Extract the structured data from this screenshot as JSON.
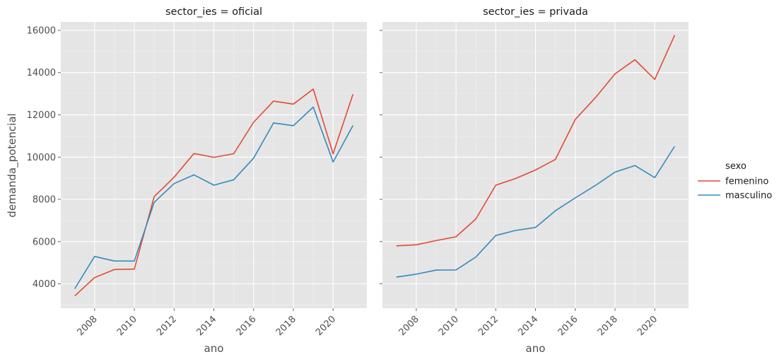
{
  "chart_data": [
    {
      "type": "line",
      "title": "sector_ies = oficial",
      "xlabel": "ano",
      "ylabel": "demanda_potencial",
      "x": [
        2007,
        2008,
        2009,
        2010,
        2011,
        2012,
        2013,
        2014,
        2015,
        2016,
        2017,
        2018,
        2019,
        2020,
        2021
      ],
      "xlim": [
        2006.3,
        2021.7
      ],
      "ylim": [
        2850,
        16400
      ],
      "xticks": [
        "2008",
        "2010",
        "2012",
        "2014",
        "2016",
        "2018",
        "2020"
      ],
      "yticks": [
        "4000",
        "6000",
        "8000",
        "10000",
        "12000",
        "14000",
        "16000"
      ],
      "grid": true,
      "series": [
        {
          "name": "femenino",
          "color": "#e24a33",
          "values": [
            3430,
            4300,
            4680,
            4700,
            8130,
            9050,
            10170,
            9990,
            10160,
            11650,
            12650,
            12510,
            13220,
            10160,
            12980
          ]
        },
        {
          "name": "masculino",
          "color": "#348abd",
          "values": [
            3770,
            5300,
            5080,
            5080,
            7860,
            8750,
            9160,
            8670,
            8930,
            9950,
            11620,
            11490,
            12370,
            9770,
            11500
          ]
        }
      ]
    },
    {
      "type": "line",
      "title": "sector_ies = privada",
      "xlabel": "ano",
      "ylabel": "",
      "x": [
        2007,
        2008,
        2009,
        2010,
        2011,
        2012,
        2013,
        2014,
        2015,
        2016,
        2017,
        2018,
        2019,
        2020,
        2021
      ],
      "xlim": [
        2006.3,
        2021.7
      ],
      "ylim": [
        2850,
        16400
      ],
      "xticks": [
        "2008",
        "2010",
        "2012",
        "2014",
        "2016",
        "2018",
        "2020"
      ],
      "grid": true,
      "series": [
        {
          "name": "femenino",
          "color": "#e24a33",
          "values": [
            5800,
            5850,
            6050,
            6230,
            7070,
            8670,
            8990,
            9390,
            9890,
            11780,
            12800,
            13940,
            14610,
            13680,
            15770
          ]
        },
        {
          "name": "masculino",
          "color": "#348abd",
          "values": [
            4320,
            4460,
            4650,
            4660,
            5270,
            6290,
            6530,
            6670,
            7460,
            8070,
            8650,
            9290,
            9600,
            9030,
            10510
          ]
        }
      ]
    }
  ],
  "legend": {
    "title": "sexo",
    "placement": "right",
    "items": [
      {
        "label": "femenino",
        "color": "#e24a33"
      },
      {
        "label": "masculino",
        "color": "#348abd"
      }
    ]
  },
  "colors": {
    "panel_background": "#e5e5e5",
    "grid": "#ffffff"
  }
}
